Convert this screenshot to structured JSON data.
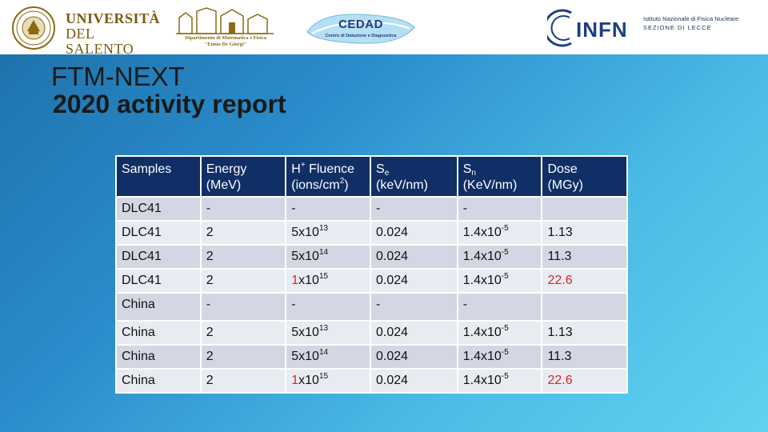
{
  "header": {
    "unisalento": {
      "line1": "UNIVERSITÀ",
      "line2": "DEL SALENTO"
    },
    "department": {
      "line1": "Dipartimento di Matematica e Fisica",
      "line2": "\"Ennio De Giorgi\""
    },
    "cedad": {
      "title": "CEDAD",
      "subtitle": "Centro di Datazione e Diagnostica"
    },
    "infn": {
      "name": "INFN",
      "institute": "Istituto Nazionale di Fisica Nucleare",
      "section": "SEZIONE DI LECCE"
    }
  },
  "title": {
    "line1": "FTM-NEXT",
    "line2": "2020 activity report"
  },
  "table": {
    "headers": [
      {
        "line1": "Samples",
        "line2": ""
      },
      {
        "line1": "Energy",
        "line2": "(MeV)"
      },
      {
        "line1_pre": "H",
        "line1_sup": "+",
        "line1_post": " Fluence",
        "line2_pre": "(ions/cm",
        "line2_sup": "2",
        "line2_post": ")"
      },
      {
        "line1_pre": "S",
        "line1_sub": "e",
        "line2": "(keV/nm)"
      },
      {
        "line1_pre": "S",
        "line1_sub": "n",
        "line2": "(KeV/nm)"
      },
      {
        "line1": "Dose",
        "line2": "(MGy)"
      }
    ],
    "rows": [
      {
        "sample": "DLC41",
        "energy": "-",
        "fluence_mant": "-",
        "fluence_exp": "",
        "se": "-",
        "sn_mant": "-",
        "sn_exp": "",
        "dose": ""
      },
      {
        "sample": "DLC41",
        "energy": "2",
        "fluence_mant": "5x10",
        "fluence_exp": "13",
        "se": "0.024",
        "sn_mant": "1.4x10",
        "sn_exp": "-5",
        "dose": "1.13"
      },
      {
        "sample": "DLC41",
        "energy": "2",
        "fluence_mant": "5x10",
        "fluence_exp": "14",
        "se": "0.024",
        "sn_mant": "1.4x10",
        "sn_exp": "-5",
        "dose": "11.3"
      },
      {
        "sample": "DLC41",
        "energy": "2",
        "fluence_lead": "1",
        "fluence_mant": "x10",
        "fluence_exp": "15",
        "se": "0.024",
        "sn_mant": "1.4x10",
        "sn_exp": "-5",
        "dose": "22.6"
      },
      {
        "sample": "China",
        "energy": "-",
        "fluence_mant": "-",
        "fluence_exp": "",
        "se": "-",
        "sn_mant": "-",
        "sn_exp": "",
        "dose": ""
      },
      {
        "sample": "China",
        "energy": "2",
        "fluence_mant": "5x10",
        "fluence_exp": "13",
        "se": "0.024",
        "sn_mant": "1.4x10",
        "sn_exp": "-5",
        "dose": "1.13"
      },
      {
        "sample": "China",
        "energy": "2",
        "fluence_mant": "5x10",
        "fluence_exp": "14",
        "se": "0.024",
        "sn_mant": "1.4x10",
        "sn_exp": "-5",
        "dose": "11.3"
      },
      {
        "sample": "China",
        "energy": "2",
        "fluence_lead": "1",
        "fluence_mant": "x10",
        "fluence_exp": "15",
        "se": "0.024",
        "sn_mant": "1.4x10",
        "sn_exp": "-5",
        "dose": "22.6"
      }
    ]
  },
  "colors": {
    "header_fill": "#0f2f66",
    "highlight": "#e0221f",
    "background_start": "#1d6fa8",
    "background_end": "#5fd3f0"
  }
}
